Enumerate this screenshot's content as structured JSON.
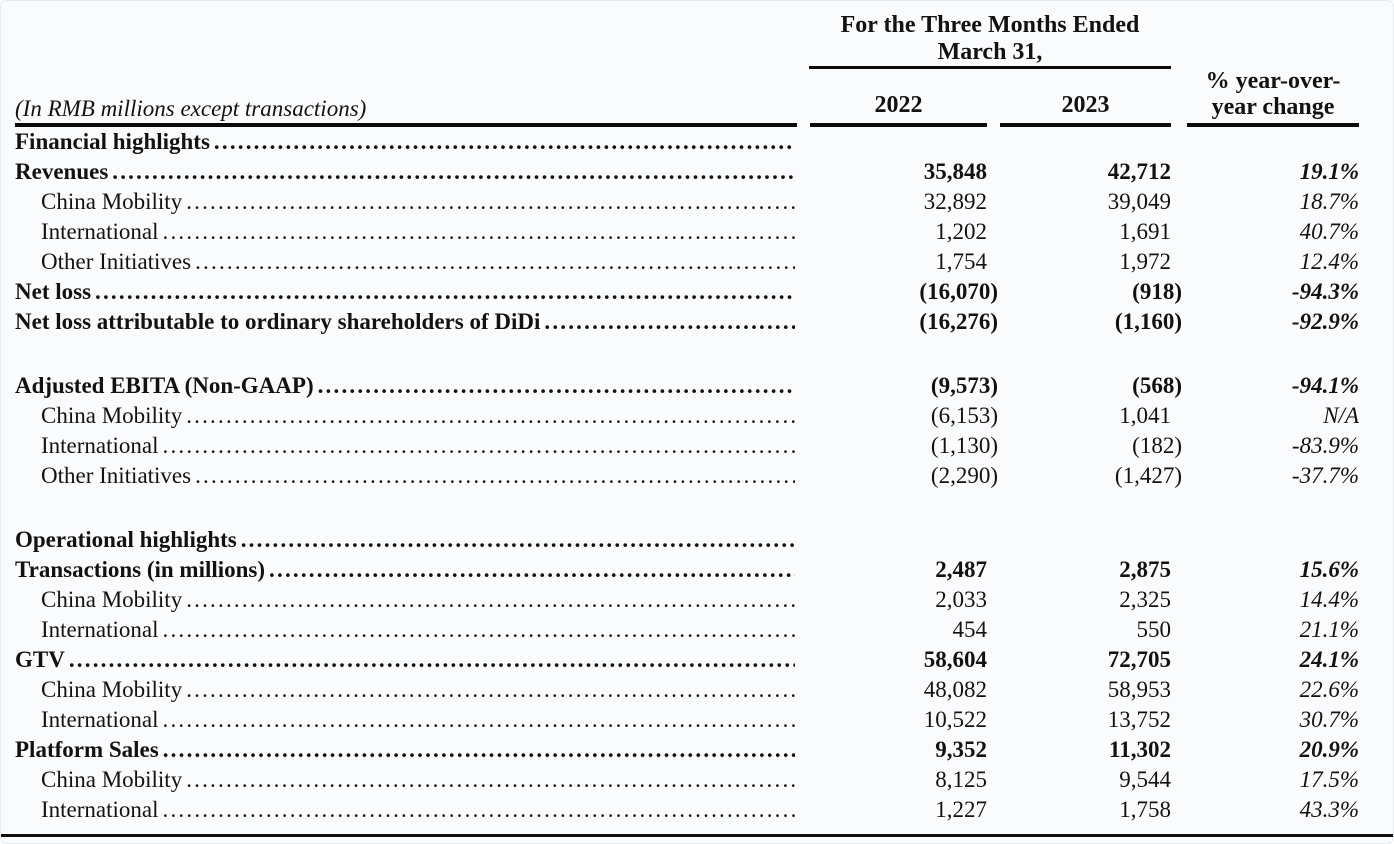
{
  "header": {
    "period": "For the Three Months Ended March 31,",
    "caption": "(In RMB millions except transactions)",
    "col2022": "2022",
    "col2023": "2023",
    "colYoy": "% year-over-year change"
  },
  "rows": [
    {
      "label": "Financial highlights",
      "v2022": "",
      "v2023": "",
      "yoy": "",
      "bold": true,
      "indent": false,
      "gap": false
    },
    {
      "label": "Revenues",
      "v2022": "35,848",
      "v2023": "42,712",
      "yoy": "19.1%",
      "bold": true,
      "indent": false,
      "gap": false
    },
    {
      "label": "China Mobility",
      "v2022": "32,892",
      "v2023": "39,049",
      "yoy": "18.7%",
      "bold": false,
      "indent": true,
      "gap": false
    },
    {
      "label": "International",
      "v2022": "1,202",
      "v2023": "1,691",
      "yoy": "40.7%",
      "bold": false,
      "indent": true,
      "gap": false
    },
    {
      "label": "Other Initiatives",
      "v2022": "1,754",
      "v2023": "1,972",
      "yoy": "12.4%",
      "bold": false,
      "indent": true,
      "gap": false
    },
    {
      "label": "Net loss",
      "v2022": "(16,070)",
      "v2023": "(918)",
      "yoy": "-94.3%",
      "bold": true,
      "indent": false,
      "gap": false
    },
    {
      "label": "Net loss attributable to ordinary shareholders of DiDi",
      "v2022": "(16,276)",
      "v2023": "(1,160)",
      "yoy": "-92.9%",
      "bold": true,
      "indent": false,
      "gap": false
    },
    {
      "label": "Adjusted EBITA (Non-GAAP)",
      "v2022": "(9,573)",
      "v2023": "(568)",
      "yoy": "-94.1%",
      "bold": true,
      "indent": false,
      "gap": true
    },
    {
      "label": "China Mobility",
      "v2022": "(6,153)",
      "v2023": "1,041",
      "yoy": "N/A",
      "bold": false,
      "indent": true,
      "gap": false
    },
    {
      "label": "International",
      "v2022": "(1,130)",
      "v2023": "(182)",
      "yoy": "-83.9%",
      "bold": false,
      "indent": true,
      "gap": false
    },
    {
      "label": "Other Initiatives",
      "v2022": "(2,290)",
      "v2023": "(1,427)",
      "yoy": "-37.7%",
      "bold": false,
      "indent": true,
      "gap": false
    },
    {
      "label": "Operational highlights",
      "v2022": "",
      "v2023": "",
      "yoy": "",
      "bold": true,
      "indent": false,
      "gap": true
    },
    {
      "label": "Transactions (in millions)",
      "v2022": "2,487",
      "v2023": "2,875",
      "yoy": "15.6%",
      "bold": true,
      "indent": false,
      "gap": false
    },
    {
      "label": "China Mobility",
      "v2022": "2,033",
      "v2023": "2,325",
      "yoy": "14.4%",
      "bold": false,
      "indent": true,
      "gap": false
    },
    {
      "label": "International",
      "v2022": "454",
      "v2023": "550",
      "yoy": "21.1%",
      "bold": false,
      "indent": true,
      "gap": false
    },
    {
      "label": "GTV",
      "v2022": "58,604",
      "v2023": "72,705",
      "yoy": "24.1%",
      "bold": true,
      "indent": false,
      "gap": false
    },
    {
      "label": "China Mobility",
      "v2022": "48,082",
      "v2023": "58,953",
      "yoy": "22.6%",
      "bold": false,
      "indent": true,
      "gap": false
    },
    {
      "label": "International",
      "v2022": "10,522",
      "v2023": "13,752",
      "yoy": "30.7%",
      "bold": false,
      "indent": true,
      "gap": false
    },
    {
      "label": "Platform Sales",
      "v2022": "9,352",
      "v2023": "11,302",
      "yoy": "20.9%",
      "bold": true,
      "indent": false,
      "gap": false
    },
    {
      "label": "China Mobility",
      "v2022": "8,125",
      "v2023": "9,544",
      "yoy": "17.5%",
      "bold": false,
      "indent": true,
      "gap": false
    },
    {
      "label": "International",
      "v2022": "1,227",
      "v2023": "1,758",
      "yoy": "43.3%",
      "bold": false,
      "indent": true,
      "gap": false
    }
  ]
}
